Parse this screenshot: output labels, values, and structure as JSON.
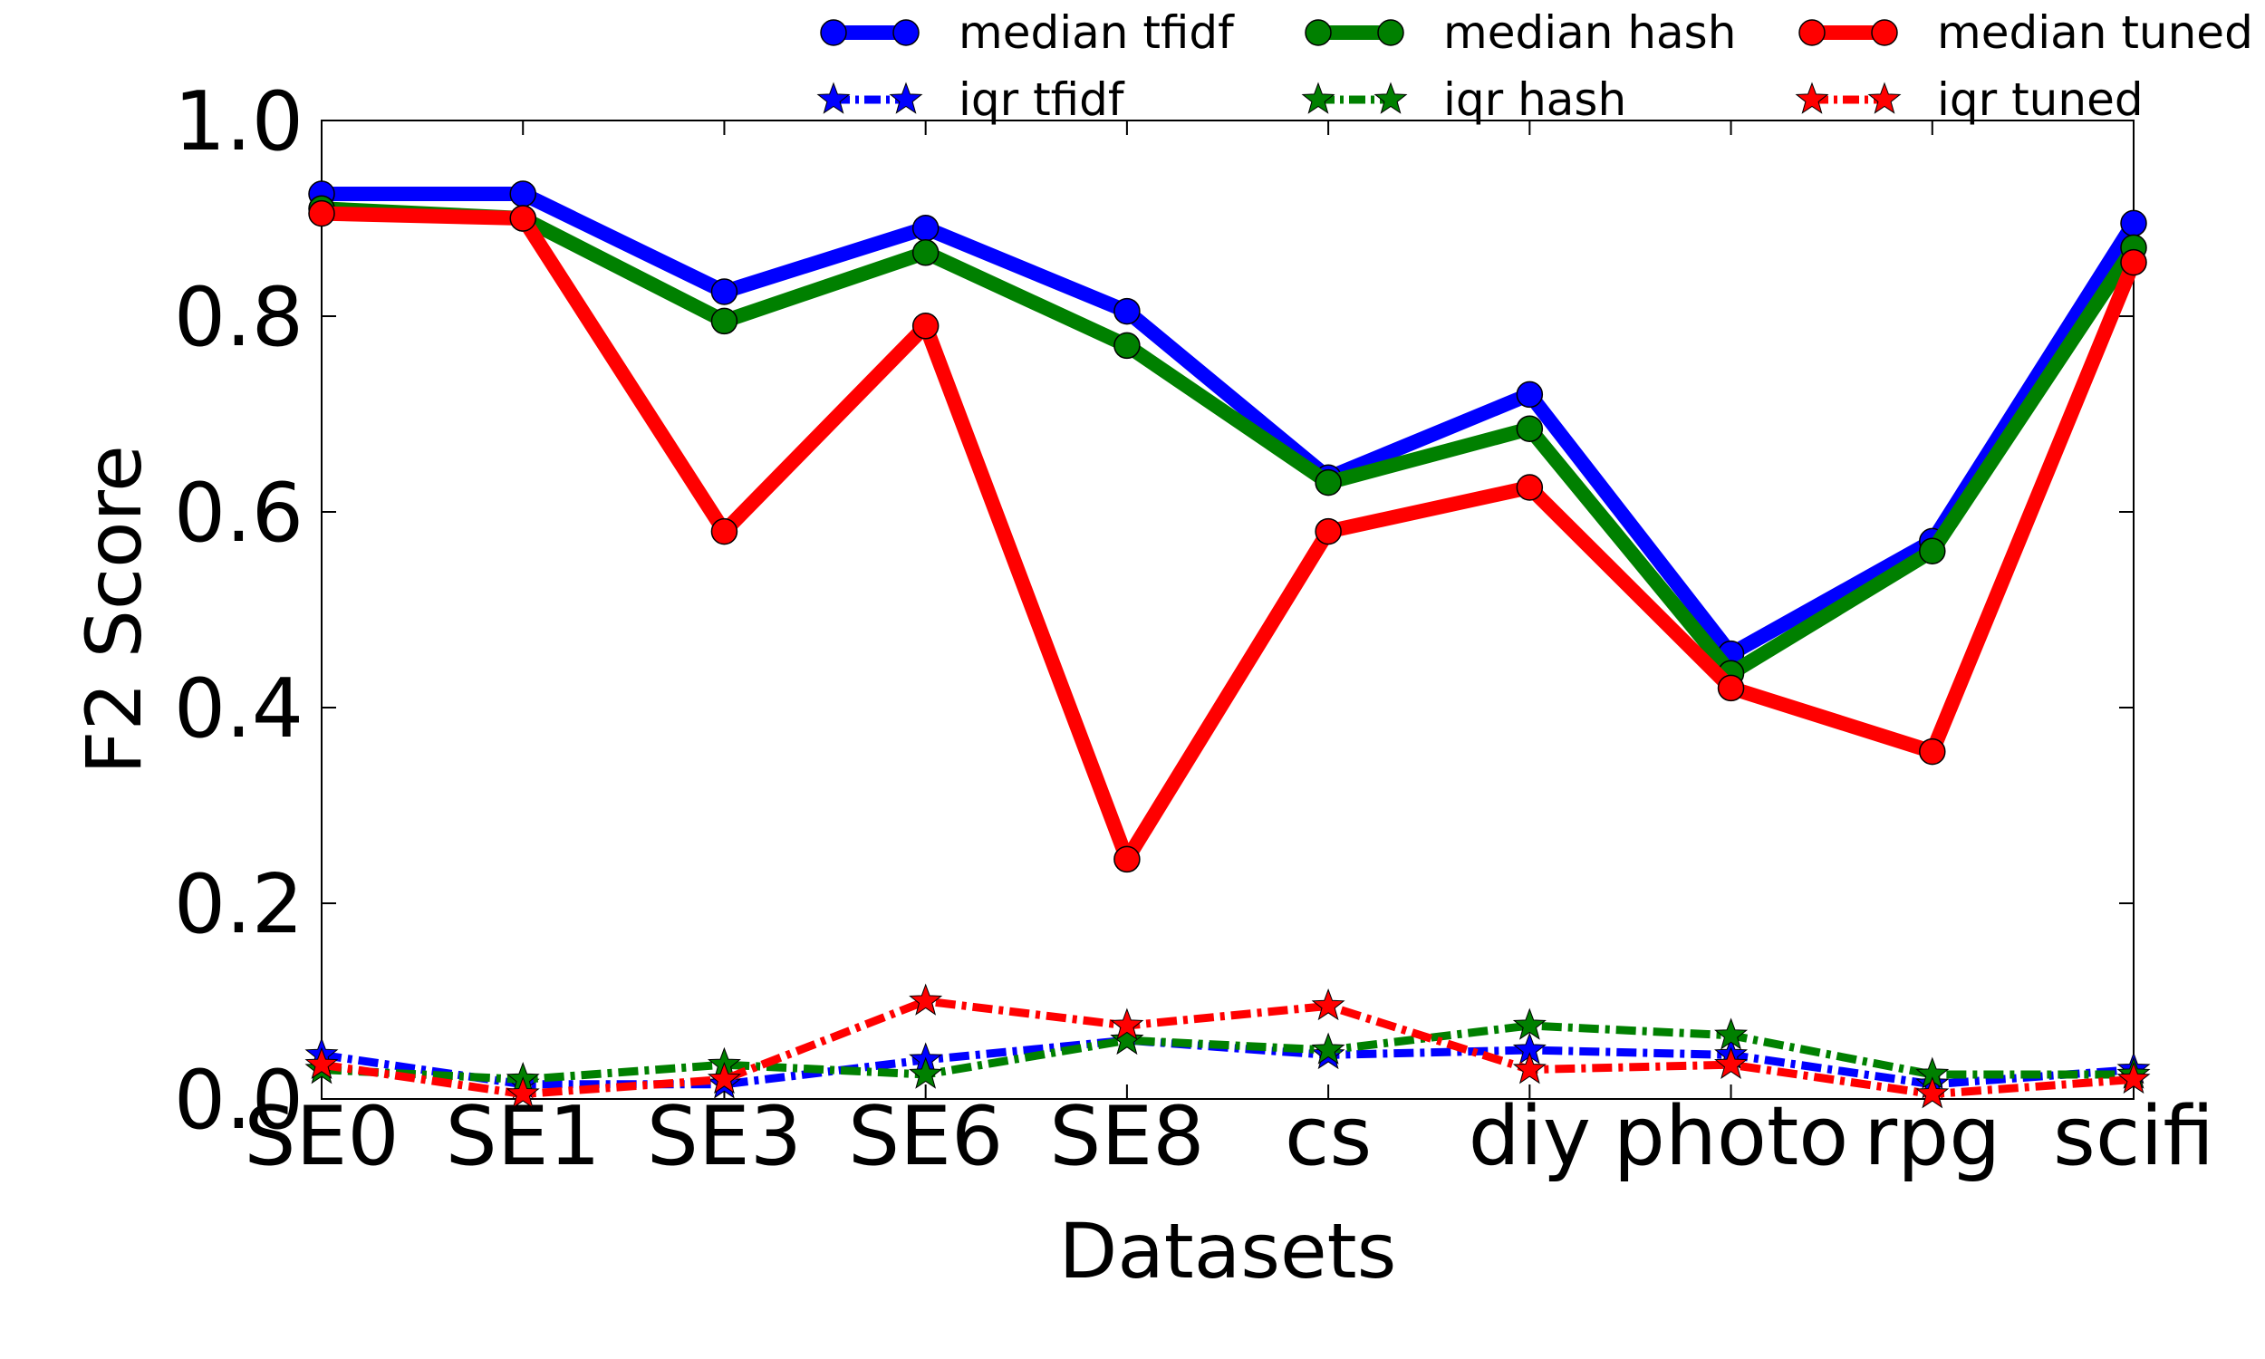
{
  "chart_data": {
    "type": "line",
    "xlabel": "Datasets",
    "ylabel": "F2 Score",
    "categories": [
      "SE0",
      "SE1",
      "SE3",
      "SE6",
      "SE8",
      "cs",
      "diy",
      "photo",
      "rpg",
      "scifi"
    ],
    "ylim": [
      0,
      1
    ],
    "yticks": [
      "0.0",
      "0.2",
      "0.4",
      "0.6",
      "0.8",
      "1.0"
    ],
    "grid": false,
    "legend_position": "top",
    "series": [
      {
        "name": "median tfidf",
        "color": "#0000ff",
        "style": "solid",
        "marker": "circle",
        "values": [
          0.925,
          0.925,
          0.825,
          0.89,
          0.805,
          0.635,
          0.72,
          0.455,
          0.57,
          0.895
        ]
      },
      {
        "name": "median hash",
        "color": "#008000",
        "style": "solid",
        "marker": "circle",
        "values": [
          0.91,
          0.9,
          0.795,
          0.865,
          0.77,
          0.63,
          0.685,
          0.435,
          0.56,
          0.87
        ]
      },
      {
        "name": "median tuned",
        "color": "#ff0000",
        "style": "solid",
        "marker": "circle",
        "values": [
          0.905,
          0.9,
          0.58,
          0.79,
          0.245,
          0.58,
          0.625,
          0.42,
          0.355,
          0.855
        ]
      },
      {
        "name": "iqr tfidf",
        "color": "#0000ff",
        "style": "dashdot",
        "marker": "star",
        "values": [
          0.045,
          0.015,
          0.015,
          0.04,
          0.06,
          0.045,
          0.05,
          0.045,
          0.015,
          0.03
        ]
      },
      {
        "name": "iqr hash",
        "color": "#008000",
        "style": "dashdot",
        "marker": "star",
        "values": [
          0.03,
          0.02,
          0.035,
          0.025,
          0.06,
          0.05,
          0.075,
          0.065,
          0.025,
          0.025
        ]
      },
      {
        "name": "iqr tuned",
        "color": "#ff0000",
        "style": "dashdot",
        "marker": "star",
        "values": [
          0.035,
          0.005,
          0.02,
          0.1,
          0.075,
          0.095,
          0.03,
          0.035,
          0.005,
          0.02
        ]
      }
    ]
  }
}
